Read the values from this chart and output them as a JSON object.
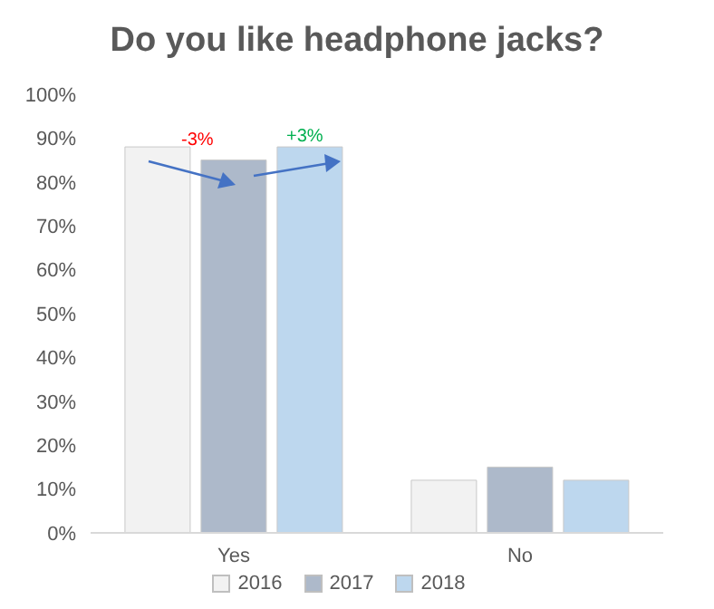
{
  "chart_data": {
    "type": "bar",
    "title": "Do you like headphone jacks?",
    "categories": [
      "Yes",
      "No"
    ],
    "series": [
      {
        "name": "2016",
        "color": "#f2f2f2",
        "values": [
          88,
          12
        ]
      },
      {
        "name": "2017",
        "color": "#adb9ca",
        "values": [
          85,
          15
        ]
      },
      {
        "name": "2018",
        "color": "#bdd7ee",
        "values": [
          88,
          12
        ]
      }
    ],
    "ylim": [
      0,
      100
    ],
    "yticks": [
      {
        "value": 0,
        "label": "0%"
      },
      {
        "value": 10,
        "label": "10%"
      },
      {
        "value": 20,
        "label": "20%"
      },
      {
        "value": 30,
        "label": "30%"
      },
      {
        "value": 40,
        "label": "40%"
      },
      {
        "value": 50,
        "label": "50%"
      },
      {
        "value": 60,
        "label": "60%"
      },
      {
        "value": 70,
        "label": "70%"
      },
      {
        "value": 80,
        "label": "80%"
      },
      {
        "value": 90,
        "label": "90%"
      },
      {
        "value": 100,
        "label": "100%"
      }
    ],
    "annotations": [
      "-3%",
      "+3%"
    ],
    "grid": false,
    "legend": "bottom"
  }
}
